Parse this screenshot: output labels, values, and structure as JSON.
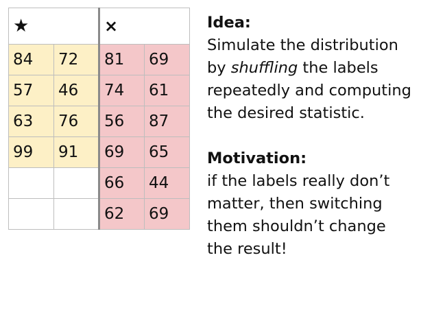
{
  "table": {
    "star_symbol": "★",
    "cross_symbol": "×",
    "star_rows": [
      [
        "84",
        "72"
      ],
      [
        "57",
        "46"
      ],
      [
        "63",
        "76"
      ],
      [
        "99",
        "91"
      ],
      [
        "",
        ""
      ],
      [
        "",
        ""
      ]
    ],
    "cross_rows": [
      [
        "81",
        "69"
      ],
      [
        "74",
        "61"
      ],
      [
        "56",
        "87"
      ],
      [
        "69",
        "65"
      ],
      [
        "66",
        "44"
      ],
      [
        "62",
        "69"
      ]
    ]
  },
  "idea": {
    "heading": "Idea:",
    "line1": "Simulate the distribution",
    "line2_pre": "by ",
    "line2_em": "shuffling",
    "line2_post": " the labels",
    "line3": "repeatedly and computing",
    "line4": "the desired statistic."
  },
  "motivation": {
    "heading": "Motivation:",
    "line1": "if the labels really don’t",
    "line2": "matter, then switching",
    "line3": "them shouldn’t change",
    "line4": "the result!"
  }
}
